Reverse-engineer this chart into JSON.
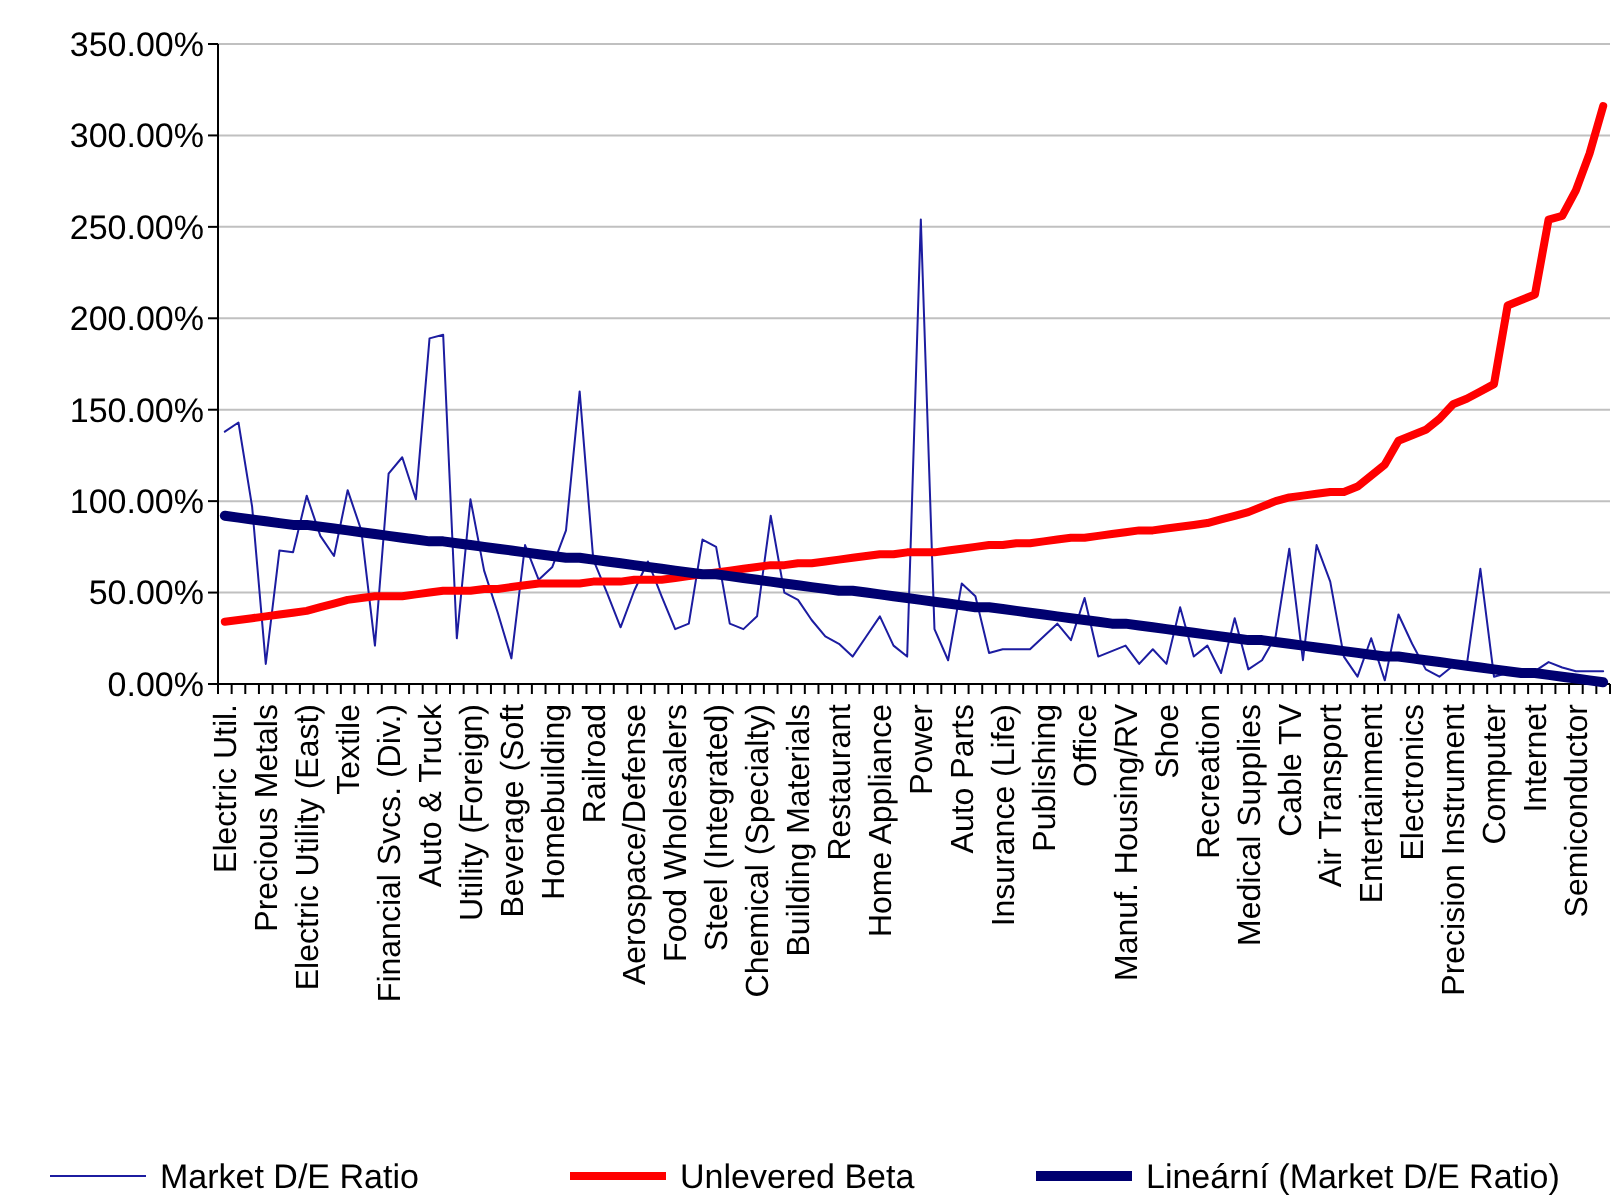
{
  "chart_data": {
    "type": "line",
    "categories": [
      "Electric Util.",
      null,
      null,
      "Precious Metals",
      null,
      null,
      "Electric Utility (East)",
      null,
      null,
      "Textile",
      null,
      null,
      "Financial Svcs. (Div.)",
      null,
      null,
      "Auto & Truck",
      null,
      null,
      "Utility (Foreign)",
      null,
      null,
      "Beverage (Soft",
      null,
      null,
      "Homebuilding",
      null,
      null,
      "Railroad",
      null,
      null,
      "Aerospace/Defense",
      null,
      null,
      "Food Wholesalers",
      null,
      null,
      "Steel (Integrated)",
      null,
      null,
      "Chemical (Specialty)",
      null,
      null,
      "Building Materials",
      null,
      null,
      "Restaurant",
      null,
      null,
      "Home Appliance",
      null,
      null,
      "Power",
      null,
      null,
      "Auto Parts",
      null,
      null,
      "Insurance (Life)",
      null,
      null,
      "Publishing",
      null,
      null,
      "Office",
      null,
      null,
      "Manuf. Housing/RV",
      null,
      null,
      "Shoe",
      null,
      null,
      "Recreation",
      null,
      null,
      "Medical Supplies",
      null,
      null,
      "Cable TV",
      null,
      null,
      "Air Transport",
      null,
      null,
      "Entertainment",
      null,
      null,
      "Electronics",
      null,
      null,
      "Precision Instrument",
      null,
      null,
      "Computer",
      null,
      null,
      "Internet",
      null,
      null,
      "Semiconductor",
      null,
      null
    ],
    "series": [
      {
        "name": "Market D/E Ratio",
        "color": "#1c1ca0",
        "values": [
          138,
          143,
          97,
          11,
          73,
          72,
          103,
          81,
          70,
          106,
          84,
          21,
          115,
          124,
          101,
          189,
          191,
          25,
          101,
          62,
          39,
          14,
          76,
          57,
          64,
          84,
          160,
          68,
          50,
          31,
          51,
          67,
          48,
          30,
          33,
          79,
          75,
          33,
          30,
          37,
          92,
          50,
          46,
          35,
          26,
          22,
          15,
          26,
          37,
          21,
          15,
          254,
          30,
          13,
          55,
          48,
          17,
          19,
          19,
          19,
          26,
          33,
          24,
          47,
          15,
          18,
          21,
          11,
          19,
          11,
          42,
          15,
          21,
          6,
          36,
          8,
          13,
          26,
          74,
          13,
          76,
          56,
          15,
          4,
          25,
          2,
          38,
          22,
          8,
          4,
          10,
          10,
          63,
          4,
          6,
          6,
          7,
          12,
          9,
          7,
          7,
          7
        ]
      },
      {
        "name": "Unlevered Beta",
        "color": "#ff0000",
        "values": [
          34,
          35,
          36,
          37,
          38,
          39,
          40,
          42,
          44,
          46,
          47,
          48,
          48,
          48,
          49,
          50,
          51,
          51,
          51,
          52,
          52,
          53,
          54,
          55,
          55,
          55,
          55,
          56,
          56,
          56,
          57,
          57,
          57,
          58,
          59,
          60,
          61,
          62,
          63,
          64,
          65,
          65,
          66,
          66,
          67,
          68,
          69,
          70,
          71,
          71,
          72,
          72,
          72,
          73,
          74,
          75,
          76,
          76,
          77,
          77,
          78,
          79,
          80,
          80,
          81,
          82,
          83,
          84,
          84,
          85,
          86,
          87,
          88,
          90,
          92,
          94,
          97,
          100,
          102,
          103,
          104,
          105,
          105,
          108,
          114,
          120,
          133,
          136,
          139,
          145,
          153,
          156,
          160,
          164,
          207,
          210,
          213,
          254,
          256,
          270,
          290,
          316
        ]
      },
      {
        "name": "Lineární (Market D/E Ratio)",
        "color": "#000070",
        "values": [
          92,
          91,
          90,
          89,
          88,
          87,
          87,
          86,
          85,
          84,
          83,
          82,
          81,
          80,
          79,
          78,
          78,
          77,
          76,
          75,
          74,
          73,
          72,
          71,
          70,
          69,
          69,
          68,
          67,
          66,
          65,
          64,
          63,
          62,
          61,
          60,
          60,
          59,
          58,
          57,
          56,
          55,
          54,
          53,
          52,
          51,
          51,
          50,
          49,
          48,
          47,
          46,
          45,
          44,
          43,
          42,
          42,
          41,
          40,
          39,
          38,
          37,
          36,
          35,
          34,
          33,
          33,
          32,
          31,
          30,
          29,
          28,
          27,
          26,
          25,
          24,
          24,
          23,
          22,
          21,
          20,
          19,
          18,
          17,
          16,
          15,
          15,
          14,
          13,
          12,
          11,
          10,
          9,
          8,
          7,
          6,
          6,
          5,
          4,
          3,
          2,
          1
        ]
      }
    ],
    "ylim": [
      0,
      350
    ],
    "yticks": [
      {
        "value": 0,
        "label": "0.00%"
      },
      {
        "value": 50,
        "label": "50.00%"
      },
      {
        "value": 100,
        "label": "100.00%"
      },
      {
        "value": 150,
        "label": "150.00%"
      },
      {
        "value": 200,
        "label": "200.00%"
      },
      {
        "value": 250,
        "label": "250.00%"
      },
      {
        "value": 300,
        "label": "300.00%"
      },
      {
        "value": 350,
        "label": "350.00%"
      }
    ],
    "grid": "y",
    "legend": "bottom",
    "marker": "none"
  }
}
